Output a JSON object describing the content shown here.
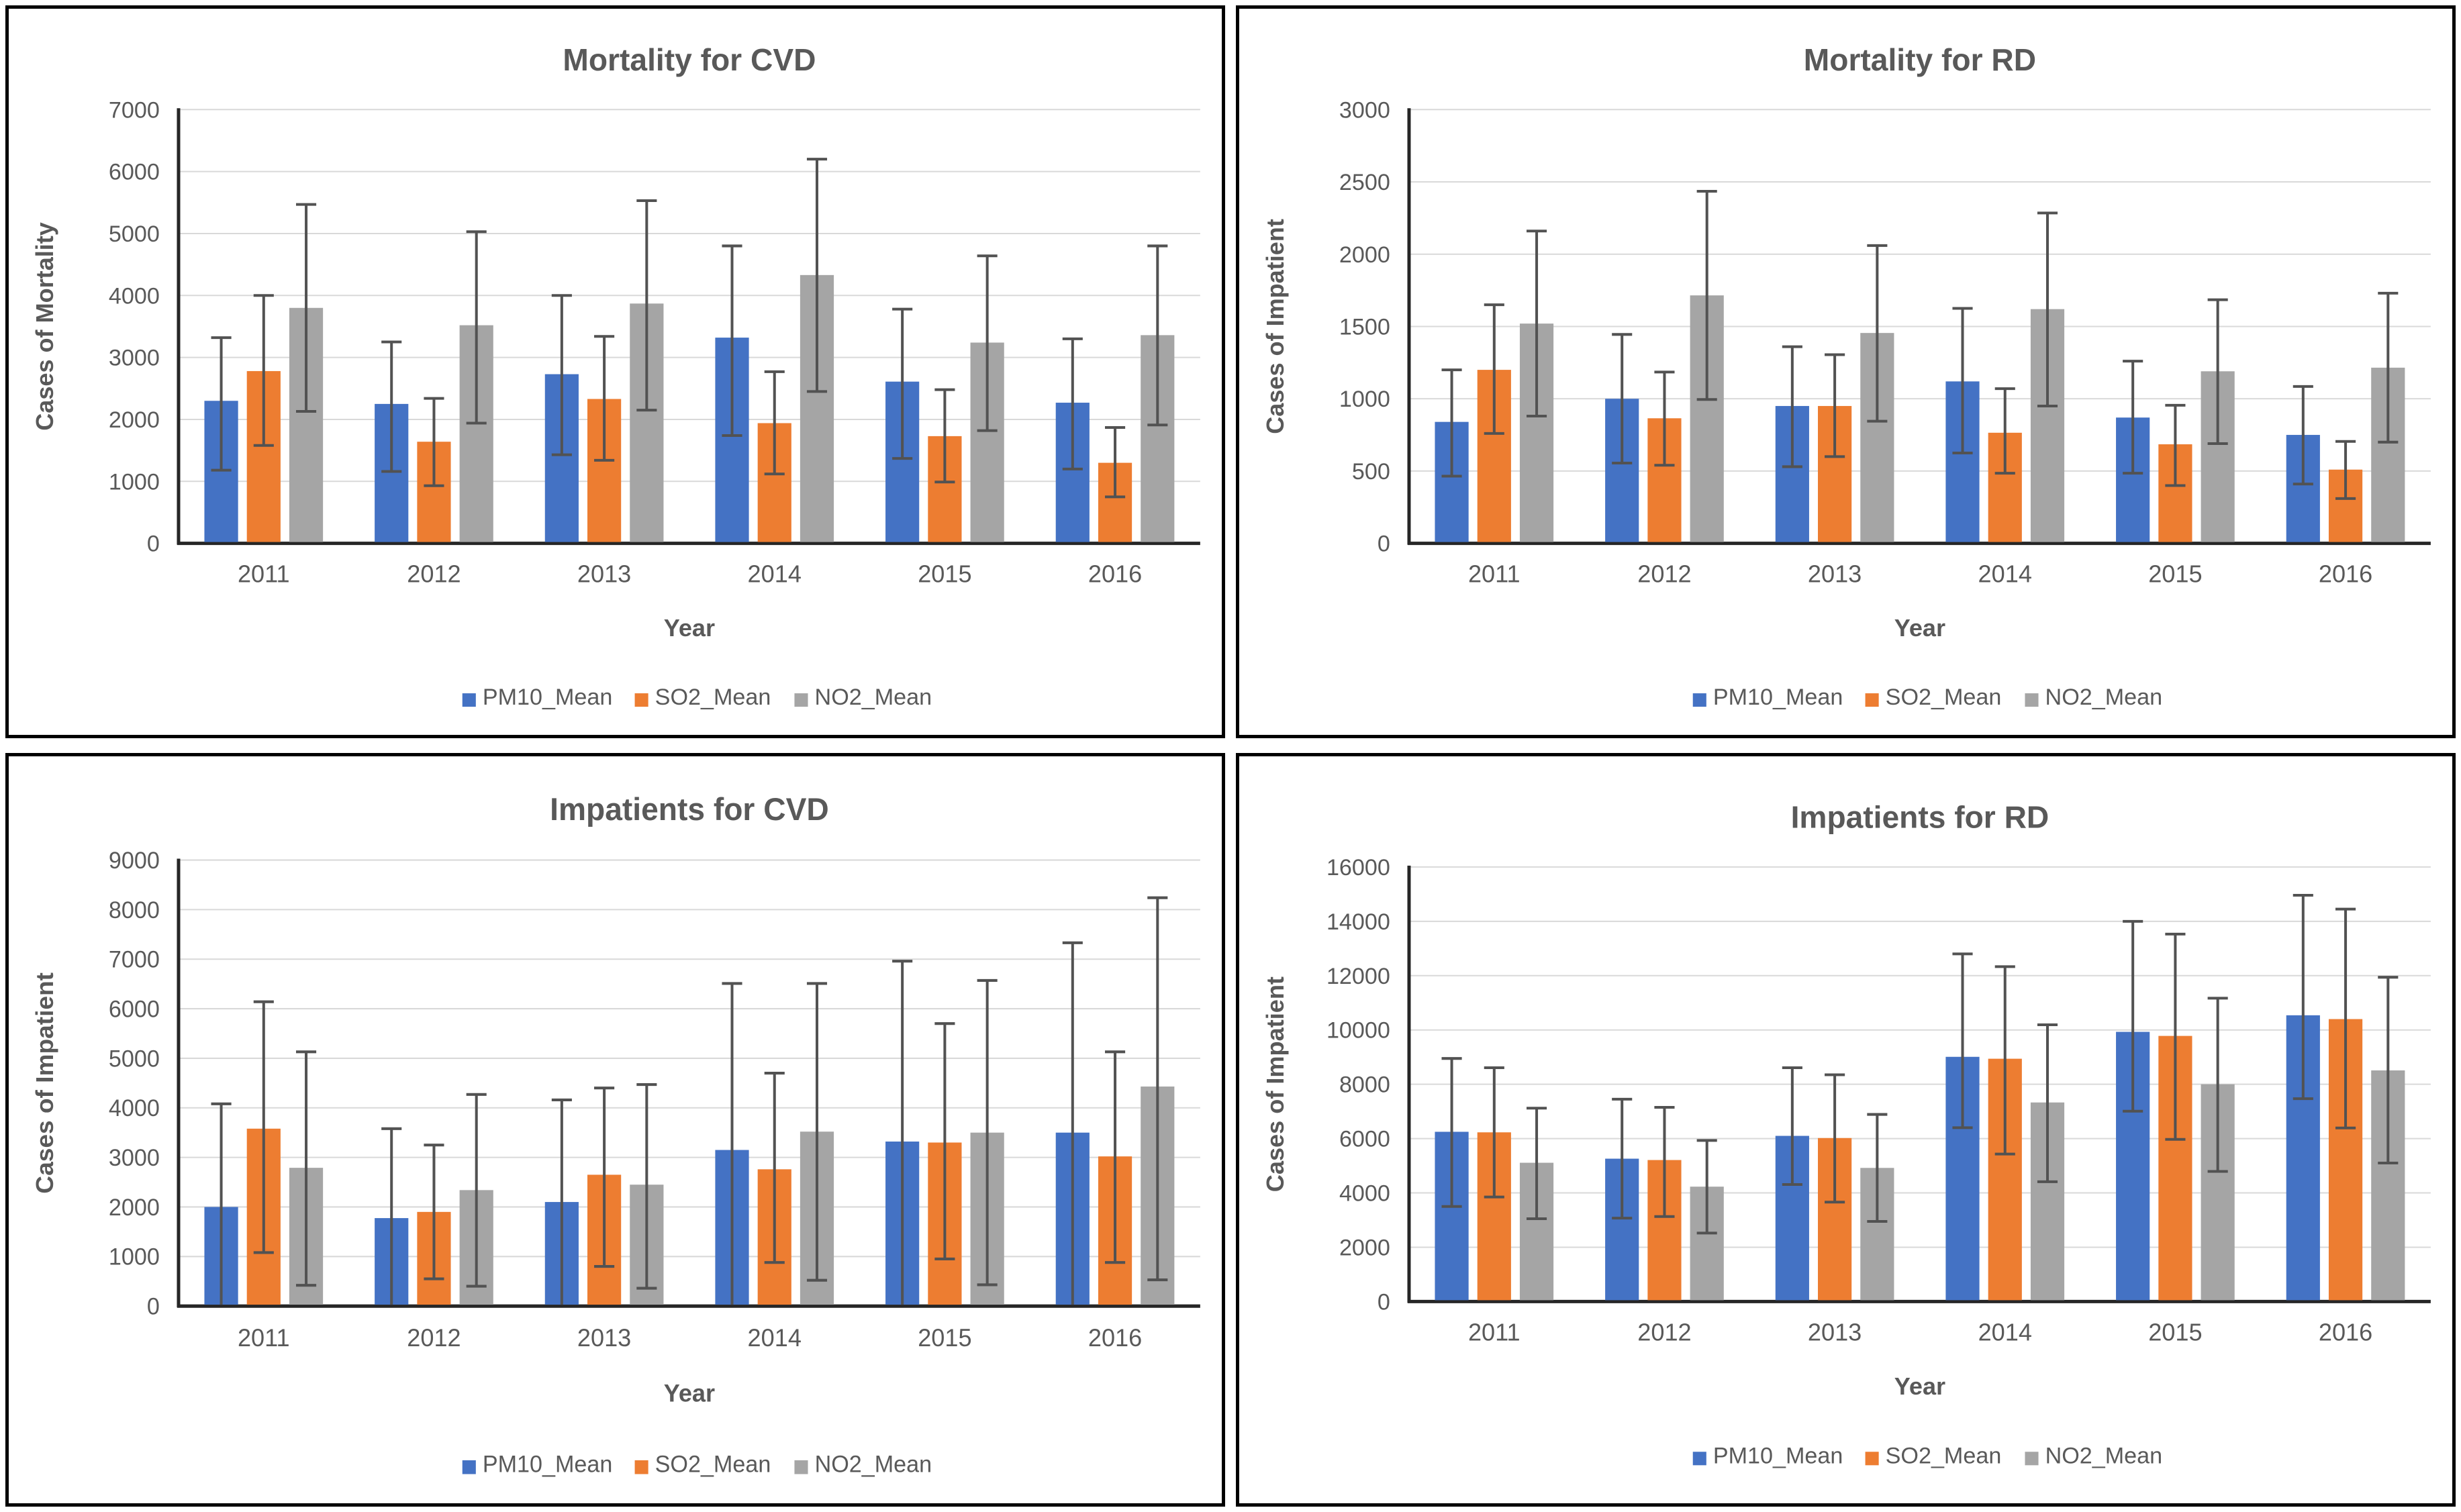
{
  "page": {
    "background": "#ffffff",
    "panel_border_color": "#000000"
  },
  "styles": {
    "text_color": "#595959",
    "grid_color": "#D9D9D9",
    "axis_color": "#262626",
    "error_bar_color": "#525252",
    "series_colors": {
      "PM10_Mean": "#4472C4",
      "SO2_Mean": "#ED7D31",
      "NO2_Mean": "#A5A5A5"
    }
  },
  "chart_data": [
    {
      "type": "bar",
      "title": "Mortality for CVD",
      "xlabel": "Year",
      "ylabel": "Cases of Mortality",
      "ylim": [
        0,
        7000
      ],
      "ystep": 1000,
      "grid": true,
      "legend_position": "bottom",
      "error_bars": true,
      "categories": [
        "2011",
        "2012",
        "2013",
        "2014",
        "2015",
        "2016"
      ],
      "series": [
        {
          "name": "PM10_Mean",
          "color": "#4472C4",
          "values": [
            2300,
            2250,
            2730,
            3320,
            2610,
            2270
          ],
          "err_high": [
            3320,
            3250,
            4000,
            4800,
            3780,
            3300
          ],
          "err_low": [
            1180,
            1160,
            1430,
            1740,
            1370,
            1200
          ]
        },
        {
          "name": "SO2_Mean",
          "color": "#ED7D31",
          "values": [
            2780,
            1640,
            2330,
            1940,
            1730,
            1300
          ],
          "err_high": [
            4000,
            2340,
            3340,
            2770,
            2480,
            1870
          ],
          "err_low": [
            1580,
            930,
            1340,
            1120,
            990,
            750
          ]
        },
        {
          "name": "NO2_Mean",
          "color": "#A5A5A5",
          "values": [
            3800,
            3520,
            3870,
            4330,
            3240,
            3360
          ],
          "err_high": [
            5470,
            5030,
            5530,
            6200,
            4640,
            4800
          ],
          "err_low": [
            2130,
            1940,
            2150,
            2450,
            1820,
            1910
          ]
        }
      ]
    },
    {
      "type": "bar",
      "title": "Mortality for RD",
      "xlabel": "Year",
      "ylabel": "Cases of Impatient",
      "ylim": [
        0,
        3000
      ],
      "ystep": 500,
      "grid": true,
      "legend_position": "bottom",
      "error_bars": true,
      "categories": [
        "2011",
        "2012",
        "2013",
        "2014",
        "2015",
        "2016"
      ],
      "series": [
        {
          "name": "PM10_Mean",
          "color": "#4472C4",
          "values": [
            840,
            1000,
            950,
            1120,
            870,
            750
          ],
          "err_high": [
            1200,
            1445,
            1360,
            1625,
            1260,
            1085
          ],
          "err_low": [
            465,
            555,
            530,
            625,
            485,
            410
          ]
        },
        {
          "name": "SO2_Mean",
          "color": "#ED7D31",
          "values": [
            1200,
            865,
            950,
            765,
            685,
            510
          ],
          "err_high": [
            1650,
            1185,
            1305,
            1070,
            955,
            705
          ],
          "err_low": [
            760,
            540,
            600,
            485,
            400,
            310
          ]
        },
        {
          "name": "NO2_Mean",
          "color": "#A5A5A5",
          "values": [
            1520,
            1715,
            1455,
            1620,
            1190,
            1215
          ],
          "err_high": [
            2160,
            2435,
            2060,
            2285,
            1685,
            1730
          ],
          "err_low": [
            880,
            995,
            845,
            950,
            690,
            700
          ]
        }
      ]
    },
    {
      "type": "bar",
      "title": "Impatients for CVD",
      "xlabel": "Year",
      "ylabel": "Cases of Impatient",
      "ylim": [
        0,
        9000
      ],
      "ystep": 1000,
      "grid": true,
      "legend_position": "bottom",
      "error_bars": true,
      "categories": [
        "2011",
        "2012",
        "2013",
        "2014",
        "2015",
        "2016"
      ],
      "series": [
        {
          "name": "PM10_Mean",
          "color": "#4472C4",
          "values": [
            2000,
            1775,
            2100,
            3150,
            3320,
            3500
          ],
          "err_high": [
            4080,
            3580,
            4160,
            6510,
            6960,
            7330
          ],
          "err_low": [
            null,
            null,
            null,
            null,
            null,
            null
          ]
        },
        {
          "name": "SO2_Mean",
          "color": "#ED7D31",
          "values": [
            3580,
            1900,
            2650,
            2760,
            3300,
            3020
          ],
          "err_high": [
            6140,
            3250,
            4400,
            4700,
            5700,
            5130
          ],
          "err_low": [
            1080,
            550,
            800,
            880,
            950,
            880
          ]
        },
        {
          "name": "NO2_Mean",
          "color": "#A5A5A5",
          "values": [
            2790,
            2340,
            2450,
            3520,
            3500,
            4430
          ],
          "err_high": [
            5130,
            4270,
            4470,
            6510,
            6570,
            8240
          ],
          "err_low": [
            420,
            400,
            360,
            520,
            430,
            530
          ]
        }
      ]
    },
    {
      "type": "bar",
      "title": "Impatients for RD",
      "xlabel": "Year",
      "ylabel": "Cases of Impatient",
      "ylim": [
        0,
        16000
      ],
      "ystep": 2000,
      "grid": true,
      "legend_position": "bottom",
      "error_bars": true,
      "categories": [
        "2011",
        "2012",
        "2013",
        "2014",
        "2015",
        "2016"
      ],
      "series": [
        {
          "name": "PM10_Mean",
          "color": "#4472C4",
          "values": [
            6250,
            5260,
            6100,
            9010,
            9930,
            10540
          ],
          "err_high": [
            8950,
            7450,
            8610,
            12800,
            14000,
            14960
          ],
          "err_low": [
            3500,
            3070,
            4310,
            6400,
            7010,
            7470
          ]
        },
        {
          "name": "SO2_Mean",
          "color": "#ED7D31",
          "values": [
            6230,
            5210,
            6020,
            8940,
            9780,
            10400
          ],
          "err_high": [
            8610,
            7150,
            8350,
            12330,
            13530,
            14450
          ],
          "err_low": [
            3850,
            3130,
            3660,
            5430,
            5970,
            6390
          ]
        },
        {
          "name": "NO2_Mean",
          "color": "#A5A5A5",
          "values": [
            5110,
            4230,
            4920,
            7330,
            8000,
            8510
          ],
          "err_high": [
            7120,
            5930,
            6890,
            10190,
            11170,
            11940
          ],
          "err_low": [
            3050,
            2520,
            2950,
            4410,
            4790,
            5100
          ]
        }
      ]
    }
  ]
}
